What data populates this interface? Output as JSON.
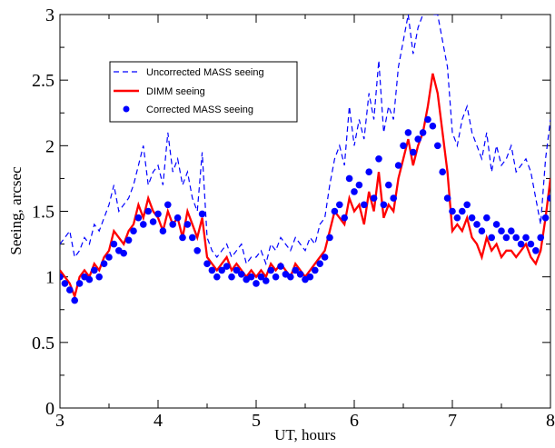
{
  "chart_data": {
    "type": "line",
    "xlabel": "UT, hours",
    "ylabel": "Seeing, arcsec",
    "xlim": [
      3,
      8
    ],
    "ylim": [
      0,
      3
    ],
    "xticks": [
      "3",
      "4",
      "5",
      "6",
      "7",
      "8"
    ],
    "yticks": [
      "0",
      "0.5",
      "1",
      "1.5",
      "2",
      "2.5",
      "3"
    ],
    "grid": false,
    "legend_position": "top-left",
    "colors": {
      "uncorrected": "#0000ff",
      "dimm": "#ff0000",
      "corrected": "#0000ff"
    },
    "series": [
      {
        "name": "Uncorrected MASS seeing",
        "style": "dashed",
        "x": [
          3.0,
          3.05,
          3.1,
          3.15,
          3.2,
          3.25,
          3.3,
          3.35,
          3.4,
          3.45,
          3.5,
          3.55,
          3.6,
          3.65,
          3.7,
          3.75,
          3.8,
          3.85,
          3.9,
          3.95,
          4.0,
          4.05,
          4.1,
          4.15,
          4.2,
          4.25,
          4.3,
          4.35,
          4.4,
          4.45,
          4.5,
          4.55,
          4.6,
          4.65,
          4.7,
          4.75,
          4.8,
          4.85,
          4.9,
          4.95,
          5.0,
          5.05,
          5.1,
          5.15,
          5.2,
          5.25,
          5.3,
          5.35,
          5.4,
          5.45,
          5.5,
          5.55,
          5.6,
          5.65,
          5.7,
          5.75,
          5.8,
          5.85,
          5.9,
          5.95,
          6.0,
          6.05,
          6.1,
          6.15,
          6.2,
          6.25,
          6.3,
          6.35,
          6.4,
          6.45,
          6.5,
          6.55,
          6.6,
          6.65,
          6.7,
          6.75,
          6.8,
          6.85,
          6.9,
          6.95,
          7.0,
          7.05,
          7.1,
          7.15,
          7.2,
          7.25,
          7.3,
          7.35,
          7.4,
          7.45,
          7.5,
          7.55,
          7.6,
          7.65,
          7.7,
          7.75,
          7.8,
          7.85,
          7.9,
          7.95,
          8.0
        ],
        "y": [
          1.25,
          1.3,
          1.35,
          1.15,
          1.2,
          1.3,
          1.25,
          1.4,
          1.35,
          1.45,
          1.55,
          1.7,
          1.5,
          1.55,
          1.6,
          1.7,
          1.85,
          2.0,
          1.7,
          1.8,
          1.85,
          1.7,
          2.1,
          1.8,
          1.9,
          1.7,
          1.8,
          1.6,
          1.5,
          1.95,
          1.3,
          1.2,
          1.15,
          1.2,
          1.25,
          1.15,
          1.2,
          1.25,
          1.1,
          1.15,
          1.15,
          1.2,
          1.1,
          1.25,
          1.2,
          1.3,
          1.25,
          1.2,
          1.3,
          1.25,
          1.2,
          1.3,
          1.25,
          1.4,
          1.45,
          1.7,
          1.9,
          2.0,
          1.85,
          2.3,
          2.0,
          2.2,
          2.05,
          2.4,
          2.2,
          2.65,
          2.1,
          2.3,
          2.2,
          2.6,
          2.8,
          3.0,
          2.7,
          2.9,
          3.0,
          3.1,
          3.0,
          3.0,
          2.8,
          2.6,
          2.1,
          2.0,
          2.2,
          2.3,
          2.1,
          2.0,
          1.9,
          2.1,
          1.8,
          2.0,
          1.85,
          1.9,
          2.0,
          1.8,
          1.85,
          1.9,
          1.8,
          1.6,
          1.4,
          1.9,
          2.2
        ]
      },
      {
        "name": "DIMM seeing",
        "style": "solid",
        "x": [
          3.0,
          3.05,
          3.1,
          3.15,
          3.2,
          3.25,
          3.3,
          3.35,
          3.4,
          3.45,
          3.5,
          3.55,
          3.6,
          3.65,
          3.7,
          3.75,
          3.8,
          3.85,
          3.9,
          3.95,
          4.0,
          4.05,
          4.1,
          4.15,
          4.2,
          4.25,
          4.3,
          4.35,
          4.4,
          4.45,
          4.5,
          4.55,
          4.6,
          4.65,
          4.7,
          4.75,
          4.8,
          4.85,
          4.9,
          4.95,
          5.0,
          5.05,
          5.1,
          5.15,
          5.2,
          5.25,
          5.3,
          5.35,
          5.4,
          5.45,
          5.5,
          5.55,
          5.6,
          5.65,
          5.7,
          5.75,
          5.8,
          5.85,
          5.9,
          5.95,
          6.0,
          6.05,
          6.1,
          6.15,
          6.2,
          6.25,
          6.3,
          6.35,
          6.4,
          6.45,
          6.5,
          6.55,
          6.6,
          6.65,
          6.7,
          6.75,
          6.8,
          6.85,
          6.9,
          6.95,
          7.0,
          7.05,
          7.1,
          7.15,
          7.2,
          7.25,
          7.3,
          7.35,
          7.4,
          7.45,
          7.5,
          7.55,
          7.6,
          7.65,
          7.7,
          7.75,
          7.8,
          7.85,
          7.9,
          7.95,
          8.0
        ],
        "y": [
          1.05,
          1.0,
          0.95,
          0.85,
          1.0,
          1.05,
          1.0,
          1.1,
          1.05,
          1.15,
          1.2,
          1.35,
          1.3,
          1.25,
          1.35,
          1.4,
          1.55,
          1.45,
          1.6,
          1.5,
          1.45,
          1.35,
          1.5,
          1.4,
          1.45,
          1.3,
          1.5,
          1.4,
          1.3,
          1.45,
          1.15,
          1.1,
          1.05,
          1.1,
          1.15,
          1.05,
          1.1,
          1.05,
          1.0,
          1.05,
          1.0,
          1.05,
          1.0,
          1.1,
          1.05,
          1.1,
          1.05,
          1.0,
          1.1,
          1.05,
          1.0,
          1.05,
          1.1,
          1.15,
          1.2,
          1.35,
          1.5,
          1.45,
          1.4,
          1.6,
          1.5,
          1.55,
          1.4,
          1.65,
          1.5,
          1.8,
          1.45,
          1.55,
          1.5,
          1.75,
          1.9,
          2.05,
          1.85,
          2.0,
          2.1,
          2.3,
          2.55,
          2.4,
          2.1,
          1.8,
          1.35,
          1.4,
          1.35,
          1.45,
          1.3,
          1.25,
          1.15,
          1.3,
          1.2,
          1.25,
          1.15,
          1.2,
          1.2,
          1.15,
          1.2,
          1.25,
          1.15,
          1.1,
          1.2,
          1.45,
          1.75
        ]
      },
      {
        "name": "Corrected MASS seeing",
        "style": "markers",
        "x": [
          3.0,
          3.05,
          3.1,
          3.15,
          3.2,
          3.25,
          3.3,
          3.35,
          3.4,
          3.45,
          3.5,
          3.55,
          3.6,
          3.65,
          3.7,
          3.75,
          3.8,
          3.85,
          3.9,
          3.95,
          4.0,
          4.05,
          4.1,
          4.15,
          4.2,
          4.25,
          4.3,
          4.35,
          4.4,
          4.45,
          4.5,
          4.55,
          4.6,
          4.65,
          4.7,
          4.75,
          4.8,
          4.85,
          4.9,
          4.95,
          5.0,
          5.05,
          5.1,
          5.15,
          5.2,
          5.25,
          5.3,
          5.35,
          5.4,
          5.45,
          5.5,
          5.55,
          5.6,
          5.65,
          5.7,
          5.75,
          5.8,
          5.85,
          5.9,
          5.95,
          6.0,
          6.05,
          6.1,
          6.15,
          6.2,
          6.25,
          6.3,
          6.35,
          6.4,
          6.45,
          6.5,
          6.55,
          6.6,
          6.65,
          6.7,
          6.75,
          6.8,
          6.85,
          6.9,
          6.95,
          7.0,
          7.05,
          7.1,
          7.15,
          7.2,
          7.25,
          7.3,
          7.35,
          7.4,
          7.45,
          7.5,
          7.55,
          7.6,
          7.65,
          7.7,
          7.75,
          7.8,
          7.85,
          7.9,
          7.95,
          8.0
        ],
        "y": [
          1.0,
          0.95,
          0.9,
          0.82,
          0.95,
          1.0,
          0.98,
          1.05,
          1.0,
          1.1,
          1.15,
          1.25,
          1.2,
          1.18,
          1.28,
          1.35,
          1.45,
          1.4,
          1.5,
          1.42,
          1.48,
          1.35,
          1.55,
          1.4,
          1.45,
          1.3,
          1.4,
          1.3,
          1.2,
          1.48,
          1.1,
          1.05,
          1.0,
          1.05,
          1.08,
          1.0,
          1.05,
          1.02,
          0.98,
          1.0,
          0.95,
          1.0,
          0.97,
          1.05,
          1.0,
          1.08,
          1.02,
          1.0,
          1.05,
          1.02,
          0.98,
          1.0,
          1.05,
          1.1,
          1.15,
          1.3,
          1.5,
          1.55,
          1.45,
          1.75,
          1.65,
          1.7,
          1.55,
          1.8,
          1.6,
          1.9,
          1.55,
          1.7,
          1.6,
          1.85,
          2.0,
          2.1,
          1.95,
          2.05,
          2.1,
          2.2,
          2.15,
          2.0,
          1.8,
          1.6,
          1.5,
          1.45,
          1.5,
          1.55,
          1.45,
          1.4,
          1.35,
          1.45,
          1.3,
          1.4,
          1.35,
          1.3,
          1.35,
          1.3,
          1.25,
          1.3,
          1.25,
          1.2,
          1.3,
          1.45,
          1.6
        ]
      }
    ]
  }
}
